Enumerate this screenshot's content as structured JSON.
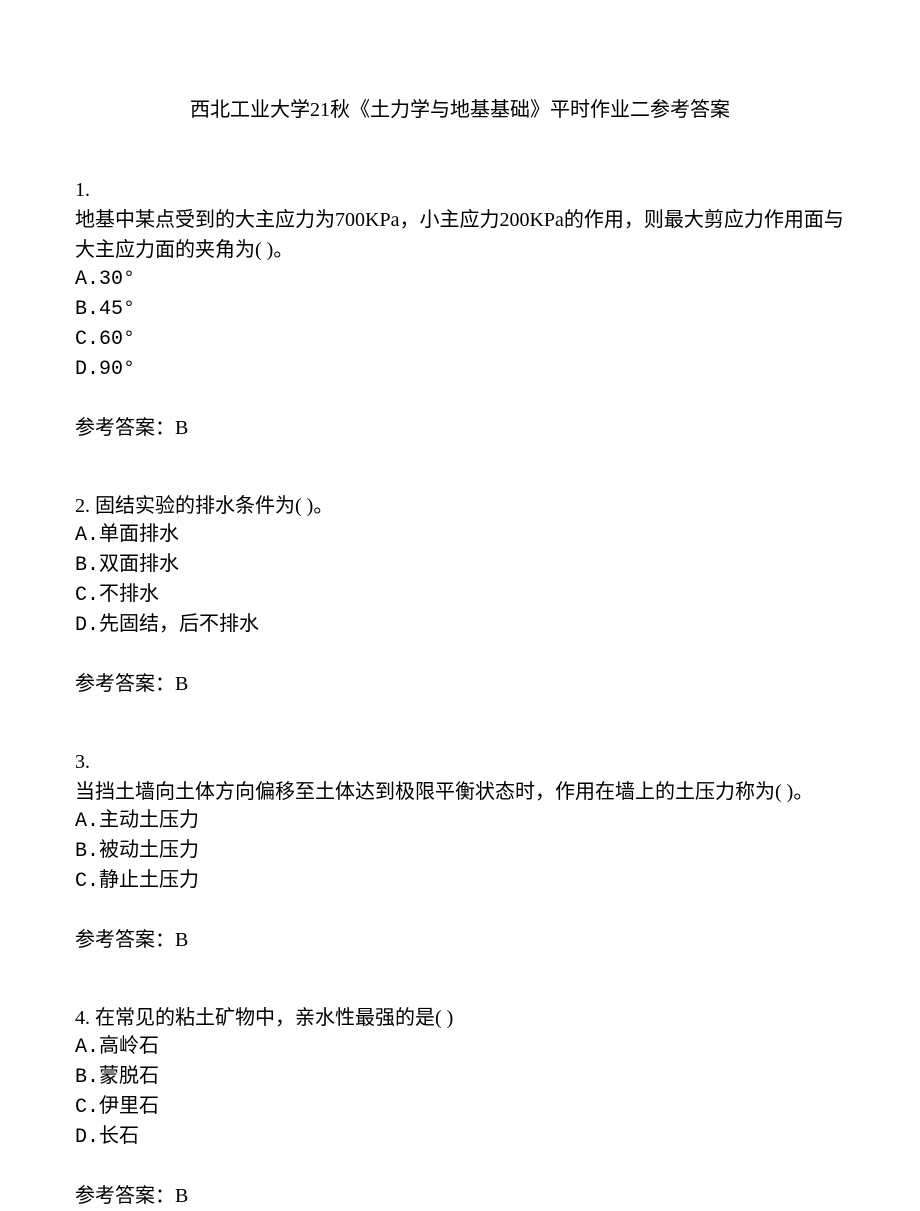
{
  "title": "西北工业大学21秋《土力学与地基基础》平时作业二参考答案",
  "questions": [
    {
      "number": "1.",
      "text": "地基中某点受到的大主应力为700KPa，小主应力200KPa的作用，则最大剪应力作用面与大主应力面的夹角为(  )。",
      "options": [
        "A.30°",
        "B.45°",
        "C.60°",
        "D.90°"
      ],
      "answer_label": "参考答案：B"
    },
    {
      "number": "2.  固结实验的排水条件为(  )。",
      "text": "",
      "options": [
        "A.单面排水",
        "B.双面排水",
        "C.不排水",
        "D.先固结，后不排水"
      ],
      "answer_label": "参考答案：B"
    },
    {
      "number": "3.",
      "text": "当挡土墙向土体方向偏移至土体达到极限平衡状态时，作用在墙上的土压力称为(  )。",
      "options": [
        "A.主动土压力",
        "B.被动土压力",
        "C.静止土压力"
      ],
      "answer_label": "参考答案：B"
    },
    {
      "number": "4.  在常见的粘土矿物中，亲水性最强的是(  )",
      "text": "",
      "options": [
        "A.高岭石",
        "B.蒙脱石",
        "C.伊里石",
        "D.长石"
      ],
      "answer_label": "参考答案：B"
    }
  ]
}
